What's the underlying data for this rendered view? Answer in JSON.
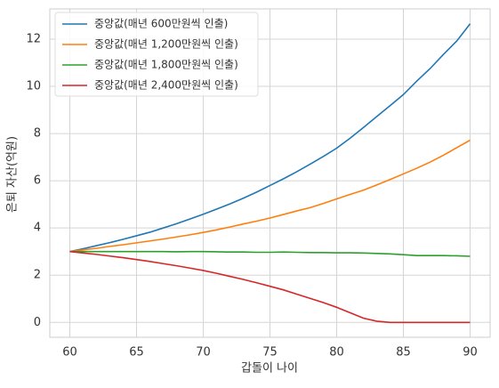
{
  "chart_data": {
    "type": "line",
    "xlabel": "갑돌이 나이",
    "ylabel": "은퇴 자산(억원)",
    "x": [
      60,
      61,
      62,
      63,
      64,
      65,
      66,
      67,
      68,
      69,
      70,
      71,
      72,
      73,
      74,
      75,
      76,
      77,
      78,
      79,
      80,
      81,
      82,
      83,
      84,
      85,
      86,
      87,
      88,
      89,
      90
    ],
    "series": [
      {
        "name": "중앙값(매년 600만원씩 인출)",
        "color": "#1f77b4",
        "values": [
          3.0,
          3.12,
          3.25,
          3.38,
          3.52,
          3.67,
          3.82,
          4.0,
          4.18,
          4.38,
          4.58,
          4.8,
          5.02,
          5.26,
          5.52,
          5.8,
          6.08,
          6.38,
          6.7,
          7.03,
          7.38,
          7.8,
          8.25,
          8.72,
          9.18,
          9.65,
          10.22,
          10.75,
          11.35,
          11.92,
          12.65
        ]
      },
      {
        "name": "중앙값(매년 1,200만원씩 인출)",
        "color": "#ff7f0e",
        "values": [
          3.0,
          3.07,
          3.14,
          3.22,
          3.29,
          3.37,
          3.45,
          3.53,
          3.62,
          3.71,
          3.81,
          3.92,
          4.04,
          4.17,
          4.29,
          4.42,
          4.57,
          4.72,
          4.86,
          5.04,
          5.23,
          5.42,
          5.6,
          5.82,
          6.05,
          6.29,
          6.53,
          6.79,
          7.08,
          7.4,
          7.72
        ]
      },
      {
        "name": "중앙값(매년 1,800만원씩 인출)",
        "color": "#2ca02c",
        "values": [
          3.0,
          3.0,
          3.0,
          3.0,
          3.0,
          3.0,
          3.0,
          3.0,
          2.99,
          3.0,
          3.0,
          2.99,
          2.98,
          2.98,
          2.97,
          2.97,
          2.98,
          2.97,
          2.96,
          2.96,
          2.95,
          2.95,
          2.94,
          2.92,
          2.9,
          2.87,
          2.83,
          2.83,
          2.83,
          2.82,
          2.8
        ]
      },
      {
        "name": "중앙값(매년 2,400만원씩 인출)",
        "color": "#d62728",
        "values": [
          3.0,
          2.94,
          2.88,
          2.81,
          2.74,
          2.66,
          2.58,
          2.49,
          2.4,
          2.3,
          2.2,
          2.08,
          1.95,
          1.82,
          1.68,
          1.53,
          1.38,
          1.2,
          1.02,
          0.84,
          0.64,
          0.41,
          0.18,
          0.05,
          0,
          0,
          0,
          0,
          0,
          0,
          0
        ]
      }
    ],
    "xlim": [
      58.5,
      91.5
    ],
    "xticks": [
      60,
      65,
      70,
      75,
      80,
      85,
      90
    ],
    "ylim": [
      -0.63,
      13.28
    ],
    "yticks": [
      0,
      2,
      4,
      6,
      8,
      10,
      12
    ],
    "grid": true,
    "legend": "upper left"
  }
}
